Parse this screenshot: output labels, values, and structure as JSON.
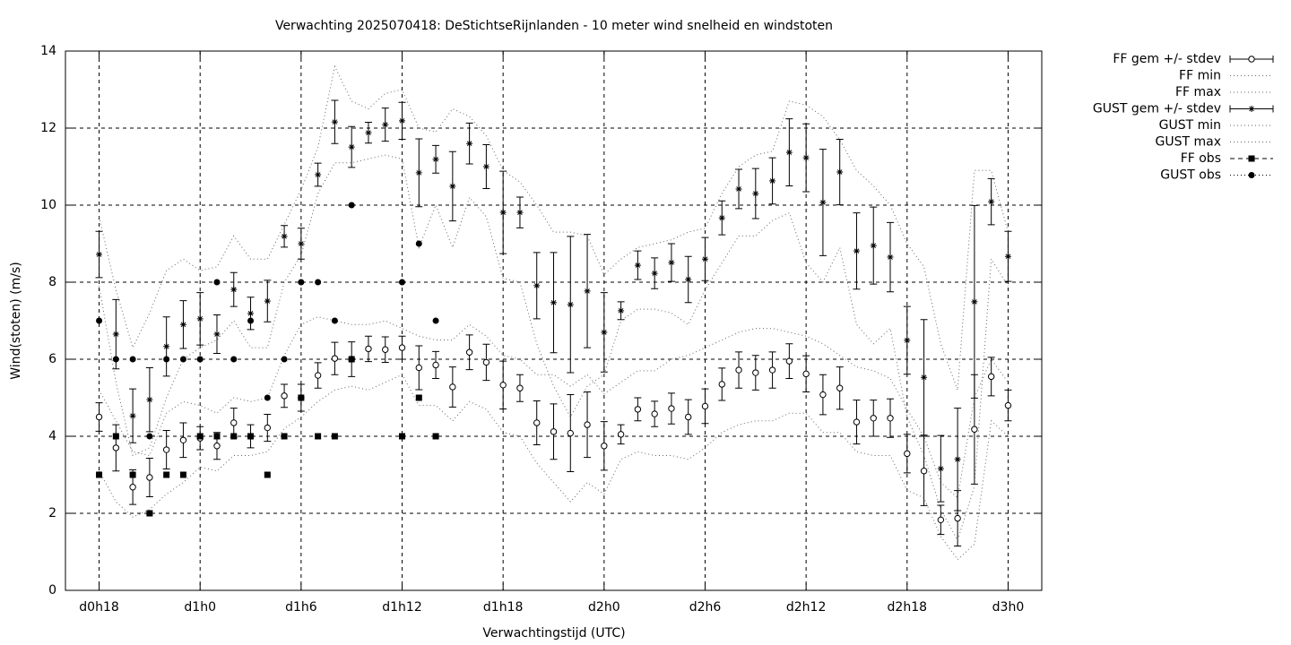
{
  "chart_data": {
    "type": "errorbar",
    "title": "Verwachting 2025070418: DeStichtseRijnlanden - 10 meter wind snelheid en windstoten",
    "x_label": "Verwachtingstijd (UTC)",
    "y_label": "Wind(stoten) (m/s)",
    "x": [
      18,
      19,
      20,
      21,
      22,
      23,
      24,
      25,
      26,
      27,
      28,
      29,
      30,
      31,
      32,
      33,
      34,
      35,
      36,
      37,
      38,
      39,
      40,
      41,
      42,
      43,
      44,
      45,
      46,
      47,
      48,
      49,
      50,
      51,
      52,
      53,
      54,
      55,
      56,
      57,
      58,
      59,
      60,
      61,
      62,
      63,
      64,
      65,
      66,
      67,
      68,
      69,
      70,
      71,
      72
    ],
    "xlim": [
      16,
      74
    ],
    "xticks": [
      {
        "value": 18,
        "label": "d0h18"
      },
      {
        "value": 24,
        "label": "d1h0"
      },
      {
        "value": 30,
        "label": "d1h6"
      },
      {
        "value": 36,
        "label": "d1h12"
      },
      {
        "value": 42,
        "label": "d1h18"
      },
      {
        "value": 48,
        "label": "d2h0"
      },
      {
        "value": 54,
        "label": "d2h6"
      },
      {
        "value": 60,
        "label": "d2h12"
      },
      {
        "value": 66,
        "label": "d2h18"
      },
      {
        "value": 72,
        "label": "d3h0"
      }
    ],
    "ylim": [
      0,
      14
    ],
    "yticks": [
      0,
      2,
      4,
      6,
      8,
      10,
      12,
      14
    ],
    "grid": true,
    "legend": "outside-right",
    "series": [
      {
        "name": "FF gem +/- stdev",
        "color": "#000000",
        "style": "errorbar",
        "marker": "circle",
        "values": [
          4.5,
          3.7,
          2.68,
          2.93,
          3.65,
          3.9,
          3.95,
          3.75,
          4.35,
          4.0,
          4.22,
          5.05,
          5.0,
          5.58,
          6.02,
          6.0,
          6.27,
          6.25,
          6.3,
          5.78,
          5.85,
          5.28,
          6.18,
          5.92,
          5.33,
          5.25,
          4.35,
          4.12,
          4.08,
          4.3,
          3.75,
          4.05,
          4.7,
          4.58,
          4.72,
          4.5,
          4.78,
          5.35,
          5.72,
          5.65,
          5.72,
          5.95,
          5.62,
          5.08,
          5.25,
          4.37,
          4.47,
          4.47,
          3.55,
          3.1,
          1.83,
          1.87,
          4.18,
          5.55,
          4.8
        ],
        "errors": [
          0.37,
          0.6,
          0.45,
          0.5,
          0.5,
          0.45,
          0.3,
          0.35,
          0.38,
          0.3,
          0.35,
          0.3,
          0.35,
          0.33,
          0.42,
          0.45,
          0.33,
          0.33,
          0.3,
          0.57,
          0.35,
          0.52,
          0.45,
          0.47,
          0.62,
          0.35,
          0.57,
          0.72,
          1.0,
          0.85,
          0.63,
          0.25,
          0.3,
          0.33,
          0.4,
          0.45,
          0.45,
          0.42,
          0.47,
          0.45,
          0.47,
          0.45,
          0.47,
          0.52,
          0.55,
          0.57,
          0.47,
          0.5,
          0.5,
          0.9,
          0.38,
          0.72,
          1.42,
          0.5,
          0.4
        ]
      },
      {
        "name": "FF min",
        "color": "#666666",
        "style": "dotted",
        "values": [
          3.1,
          2.3,
          1.9,
          2.1,
          2.5,
          2.8,
          3.2,
          3.1,
          3.5,
          3.5,
          3.6,
          4.2,
          4.5,
          4.9,
          5.2,
          5.3,
          5.2,
          5.4,
          5.6,
          4.8,
          4.8,
          4.4,
          4.9,
          4.7,
          4.1,
          4.0,
          3.3,
          2.8,
          2.3,
          2.8,
          2.5,
          3.4,
          3.6,
          3.5,
          3.5,
          3.4,
          3.7,
          4.1,
          4.3,
          4.4,
          4.4,
          4.6,
          4.6,
          4.1,
          4.1,
          3.6,
          3.5,
          3.5,
          2.6,
          2.4,
          1.4,
          0.8,
          1.2,
          4.4,
          4.0
        ]
      },
      {
        "name": "FF max",
        "color": "#666666",
        "style": "dotted",
        "values": [
          5.2,
          4.4,
          3.6,
          3.5,
          4.6,
          4.9,
          4.8,
          4.6,
          5.0,
          4.9,
          5.0,
          6.1,
          6.9,
          7.1,
          7.0,
          6.9,
          6.9,
          7.0,
          6.8,
          6.6,
          6.5,
          6.5,
          6.9,
          6.6,
          6.1,
          6.0,
          5.6,
          5.6,
          5.3,
          5.6,
          5.1,
          5.4,
          5.7,
          5.7,
          6.0,
          6.1,
          6.3,
          6.5,
          6.7,
          6.8,
          6.8,
          6.7,
          6.6,
          6.4,
          6.1,
          5.8,
          5.7,
          5.5,
          4.7,
          4.0,
          2.8,
          2.4,
          5.0,
          6.0,
          5.4
        ]
      },
      {
        "name": "GUST gem +/- stdev",
        "color": "#000000",
        "style": "errorbar",
        "marker": "star",
        "values": [
          8.72,
          6.65,
          4.53,
          4.95,
          6.33,
          6.9,
          7.05,
          6.65,
          7.81,
          7.19,
          7.51,
          9.19,
          9.0,
          10.79,
          12.16,
          11.51,
          11.88,
          12.09,
          12.19,
          10.84,
          11.19,
          10.49,
          11.6,
          11.0,
          9.81,
          9.81,
          7.91,
          7.47,
          7.42,
          7.77,
          6.7,
          7.26,
          8.44,
          8.23,
          8.51,
          8.07,
          8.6,
          9.67,
          10.42,
          10.3,
          10.63,
          11.37,
          11.23,
          10.07,
          10.86,
          8.81,
          8.95,
          8.65,
          6.49,
          5.53,
          3.16,
          3.4,
          7.49,
          10.09,
          8.67
        ],
        "errors": [
          0.6,
          0.9,
          0.7,
          0.83,
          0.77,
          0.62,
          0.68,
          0.5,
          0.44,
          0.42,
          0.54,
          0.28,
          0.4,
          0.3,
          0.56,
          0.53,
          0.27,
          0.43,
          0.48,
          0.88,
          0.36,
          0.9,
          0.53,
          0.57,
          1.07,
          0.4,
          0.86,
          1.3,
          1.77,
          1.47,
          1.03,
          0.23,
          0.37,
          0.4,
          0.49,
          0.6,
          0.56,
          0.44,
          0.51,
          0.65,
          0.6,
          0.87,
          0.88,
          1.38,
          0.85,
          0.99,
          1.0,
          0.9,
          0.88,
          1.5,
          0.86,
          1.33,
          2.5,
          0.6,
          0.65
        ]
      },
      {
        "name": "GUST min",
        "color": "#666666",
        "style": "dotted",
        "values": [
          7.9,
          5.4,
          3.5,
          3.7,
          5.0,
          6.0,
          6.3,
          6.5,
          7.0,
          6.3,
          6.3,
          8.0,
          8.7,
          10.3,
          11.1,
          11.1,
          11.2,
          11.3,
          11.2,
          8.9,
          10.0,
          8.9,
          10.2,
          9.7,
          8.1,
          8.0,
          6.4,
          5.3,
          4.5,
          5.3,
          5.6,
          7.0,
          7.3,
          7.3,
          7.2,
          6.9,
          7.8,
          8.5,
          9.2,
          9.2,
          9.6,
          9.8,
          8.5,
          8.0,
          8.9,
          6.9,
          6.4,
          6.8,
          4.5,
          3.5,
          2.1,
          1.3,
          2.7,
          8.6,
          7.9
        ]
      },
      {
        "name": "GUST max",
        "color": "#666666",
        "style": "dotted",
        "values": [
          9.7,
          7.8,
          6.3,
          7.2,
          8.3,
          8.6,
          8.3,
          8.4,
          9.2,
          8.6,
          8.6,
          9.5,
          10.4,
          11.5,
          13.6,
          12.7,
          12.5,
          12.9,
          13.0,
          12.0,
          11.9,
          12.5,
          12.3,
          11.8,
          10.9,
          10.6,
          10.0,
          9.3,
          9.3,
          9.2,
          8.2,
          8.6,
          8.9,
          9.0,
          9.1,
          9.3,
          9.4,
          10.3,
          11.0,
          11.3,
          11.4,
          12.7,
          12.6,
          12.3,
          11.7,
          10.9,
          10.5,
          10.0,
          9.0,
          8.4,
          6.4,
          5.2,
          10.9,
          10.9,
          9.3
        ]
      },
      {
        "name": "FF obs",
        "color": "#000000",
        "style": "points",
        "marker": "square",
        "values": [
          3,
          4,
          3,
          2,
          3,
          3,
          4,
          4,
          4,
          4,
          3,
          4,
          5,
          4,
          4,
          6,
          null,
          null,
          4,
          5,
          4,
          null,
          null,
          null,
          null,
          null,
          null,
          null,
          null,
          null,
          null,
          null,
          null,
          null,
          null,
          null,
          null,
          null,
          null,
          null,
          null,
          null,
          null,
          null,
          null,
          null,
          null,
          null,
          null,
          null,
          null,
          null,
          null,
          null,
          null
        ]
      },
      {
        "name": "GUST obs",
        "color": "#000000",
        "style": "points",
        "marker": "dot",
        "values": [
          7,
          6,
          6,
          4,
          6,
          6,
          6,
          8,
          6,
          7,
          5,
          6,
          8,
          8,
          7,
          10,
          null,
          null,
          8,
          9,
          7,
          null,
          null,
          null,
          null,
          null,
          null,
          null,
          null,
          null,
          null,
          null,
          null,
          null,
          null,
          null,
          null,
          null,
          null,
          null,
          null,
          null,
          null,
          null,
          null,
          null,
          null,
          null,
          null,
          null,
          null,
          null,
          null,
          null,
          null
        ]
      }
    ]
  }
}
